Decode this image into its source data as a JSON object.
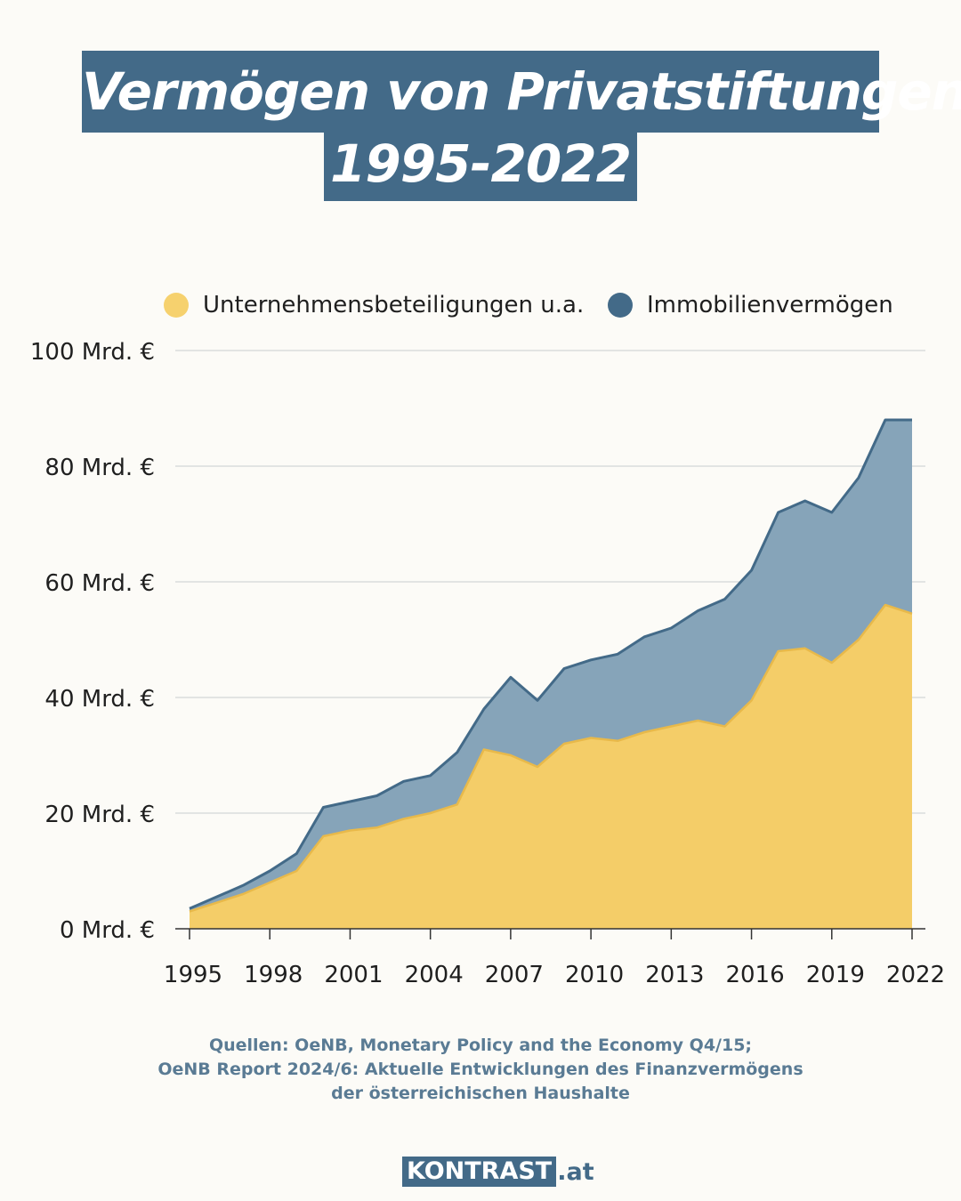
{
  "title": {
    "line1": "Vermögen von Privatstiftungen",
    "line2": "1995-2022"
  },
  "legend": {
    "items": [
      {
        "label": "Unternehmensbeteiligungen u.a.",
        "color": "#f6d16e"
      },
      {
        "label": "Immobilienvermögen",
        "color": "#436a88"
      }
    ]
  },
  "source": {
    "line1": "Quellen: OeNB, Monetary Policy and the Economy Q4/15;",
    "line2": "OeNB Report 2024/6: Aktuelle Entwicklungen des Finanzvermögens",
    "line3": "der österreichischen Haushalte"
  },
  "logo": {
    "box_text": "KONTRAST",
    "suffix": ".at",
    "color": "#436a88"
  },
  "chart_data": {
    "type": "area",
    "stacked": true,
    "x": [
      1995,
      1996,
      1997,
      1998,
      1999,
      2000,
      2001,
      2002,
      2003,
      2004,
      2005,
      2006,
      2007,
      2008,
      2009,
      2010,
      2011,
      2012,
      2013,
      2014,
      2015,
      2016,
      2017,
      2018,
      2019,
      2020,
      2021,
      2022
    ],
    "xticks": [
      "1995",
      "1998",
      "2001",
      "2004",
      "2007",
      "2010",
      "2013",
      "2016",
      "2019",
      "2022"
    ],
    "yticks": [
      "0 Mrd. €",
      "20 Mrd. €",
      "40 Mrd. €",
      "60 Mrd. €",
      "80 Mrd. €",
      "100 Mrd. €"
    ],
    "ylim": [
      0,
      100
    ],
    "grid": true,
    "legend_position": "top",
    "series": [
      {
        "name": "Unternehmensbeteiligungen u.a.",
        "color": "#f6d16e",
        "values": [
          3,
          4.5,
          6,
          8,
          10,
          16,
          17,
          17.5,
          19,
          20,
          21.5,
          31,
          30,
          28,
          32,
          33,
          32.5,
          34,
          35,
          36,
          35,
          39.5,
          48,
          48.5,
          46,
          50,
          56,
          54.5
        ]
      },
      {
        "name": "Immobilienvermögen",
        "color": "#436a88",
        "values": [
          0.5,
          1,
          1.5,
          2,
          3,
          5,
          5,
          5.5,
          6.5,
          6.5,
          9,
          7,
          13.5,
          11.5,
          13,
          13.5,
          15,
          16.5,
          17,
          19,
          22,
          22.5,
          24,
          25.5,
          26,
          28,
          32,
          33.5
        ]
      }
    ]
  }
}
